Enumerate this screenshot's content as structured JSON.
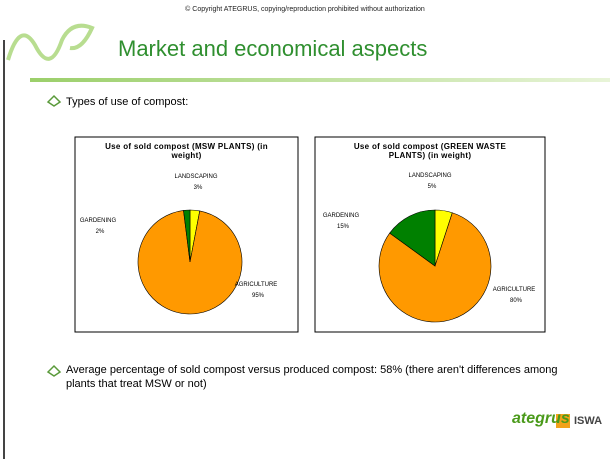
{
  "slide": {
    "copyright": "© Copyright ATEGRUS, copying/reproduction prohibited without authorization",
    "title": "Market and economical aspects",
    "bullets": [
      "Types of use of compost:",
      "Average percentage of sold compost versus  produced compost: 58% (there aren't differences among plants that treat MSW or not)"
    ],
    "logo": [
      "ategrus",
      "ISWA"
    ]
  },
  "chart_data": [
    {
      "type": "pie",
      "title": "Use of sold compost (MSW PLANTS) (in weight)",
      "categories": [
        "LANDSCAPING",
        "AGRICULTURE",
        "GARDENING"
      ],
      "values": [
        3,
        95,
        2
      ],
      "value_labels": [
        "3%",
        "95%",
        "2%"
      ],
      "colors": [
        "#ffff00",
        "#ff9900",
        "#008000"
      ]
    },
    {
      "type": "pie",
      "title": "Use of sold compost (GREEN WASTE PLANTS) (in weight)",
      "categories": [
        "LANDSCAPING",
        "AGRICULTURE",
        "GARDENING"
      ],
      "values": [
        5,
        80,
        15
      ],
      "value_labels": [
        "5%",
        "80%",
        "15%"
      ],
      "colors": [
        "#ffff00",
        "#ff9900",
        "#008000"
      ]
    }
  ]
}
